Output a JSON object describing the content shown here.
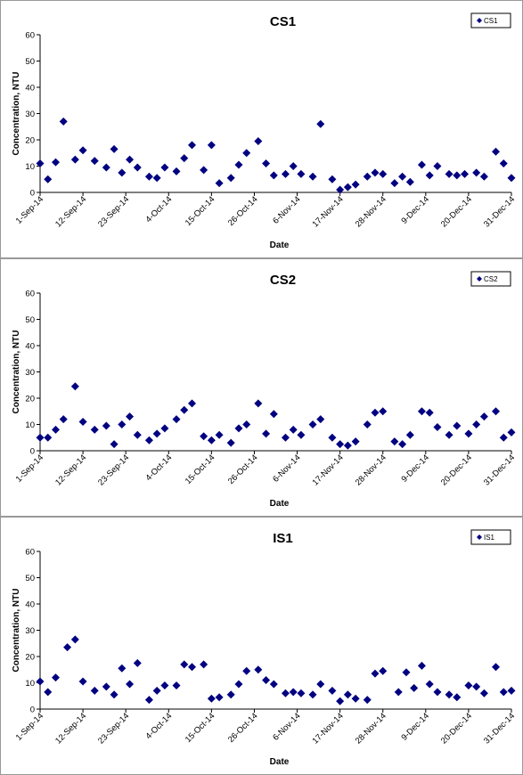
{
  "chart_data": [
    {
      "type": "scatter",
      "title": "CS1",
      "xlabel": "Date",
      "ylabel": "Concentration, NTU",
      "ylim": [
        0,
        60
      ],
      "yticks": [
        "0",
        "10",
        "20",
        "30",
        "40",
        "50",
        "60"
      ],
      "xlim": [
        "2014-09-01",
        "2014-12-31"
      ],
      "xticks": [
        "1-Sep-14",
        "12-Sep-14",
        "23-Sep-14",
        "4-Oct-14",
        "15-Oct-14",
        "26-Oct-14",
        "6-Nov-14",
        "17-Nov-14",
        "28-Nov-14",
        "9-Dec-14",
        "20-Dec-14",
        "31-Dec-14"
      ],
      "legend": "top-right",
      "series": [
        {
          "name": "CS1",
          "color": "#000080",
          "points": [
            [
              "2014-09-01",
              11
            ],
            [
              "2014-09-03",
              5
            ],
            [
              "2014-09-05",
              11.5
            ],
            [
              "2014-09-07",
              27
            ],
            [
              "2014-09-10",
              12.5
            ],
            [
              "2014-09-12",
              16
            ],
            [
              "2014-09-15",
              12
            ],
            [
              "2014-09-18",
              9.5
            ],
            [
              "2014-09-20",
              16.5
            ],
            [
              "2014-09-22",
              7.5
            ],
            [
              "2014-09-24",
              12.5
            ],
            [
              "2014-09-26",
              9.5
            ],
            [
              "2014-09-29",
              6
            ],
            [
              "2014-10-01",
              5.5
            ],
            [
              "2014-10-03",
              9.5
            ],
            [
              "2014-10-06",
              8
            ],
            [
              "2014-10-08",
              13
            ],
            [
              "2014-10-10",
              18
            ],
            [
              "2014-10-13",
              8.5
            ],
            [
              "2014-10-15",
              18
            ],
            [
              "2014-10-17",
              3.5
            ],
            [
              "2014-10-20",
              5.5
            ],
            [
              "2014-10-22",
              10.5
            ],
            [
              "2014-10-24",
              15
            ],
            [
              "2014-10-27",
              19.5
            ],
            [
              "2014-10-29",
              11
            ],
            [
              "2014-10-31",
              6.5
            ],
            [
              "2014-11-03",
              7
            ],
            [
              "2014-11-05",
              10
            ],
            [
              "2014-11-07",
              7
            ],
            [
              "2014-11-10",
              6
            ],
            [
              "2014-11-12",
              26
            ],
            [
              "2014-11-15",
              5
            ],
            [
              "2014-11-17",
              1
            ],
            [
              "2014-11-19",
              2
            ],
            [
              "2014-11-21",
              3
            ],
            [
              "2014-11-24",
              6
            ],
            [
              "2014-11-26",
              7.5
            ],
            [
              "2014-11-28",
              7
            ],
            [
              "2014-12-01",
              3.5
            ],
            [
              "2014-12-03",
              6
            ],
            [
              "2014-12-05",
              4
            ],
            [
              "2014-12-08",
              10.5
            ],
            [
              "2014-12-10",
              6.5
            ],
            [
              "2014-12-12",
              10
            ],
            [
              "2014-12-15",
              7
            ],
            [
              "2014-12-17",
              6.5
            ],
            [
              "2014-12-19",
              7
            ],
            [
              "2014-12-22",
              7.5
            ],
            [
              "2014-12-24",
              6
            ],
            [
              "2014-12-27",
              15.5
            ],
            [
              "2014-12-29",
              11
            ],
            [
              "2014-12-31",
              5.5
            ]
          ]
        }
      ]
    },
    {
      "type": "scatter",
      "title": "CS2",
      "xlabel": "Date",
      "ylabel": "Concentration, NTU",
      "ylim": [
        0,
        60
      ],
      "yticks": [
        "0",
        "10",
        "20",
        "30",
        "40",
        "50",
        "60"
      ],
      "xlim": [
        "2014-09-01",
        "2014-12-31"
      ],
      "xticks": [
        "1-Sep-14",
        "12-Sep-14",
        "23-Sep-14",
        "4-Oct-14",
        "15-Oct-14",
        "26-Oct-14",
        "6-Nov-14",
        "17-Nov-14",
        "28-Nov-14",
        "9-Dec-14",
        "20-Dec-14",
        "31-Dec-14"
      ],
      "legend": "top-right",
      "series": [
        {
          "name": "CS2",
          "color": "#000080",
          "points": [
            [
              "2014-09-01",
              5
            ],
            [
              "2014-09-03",
              5
            ],
            [
              "2014-09-05",
              8
            ],
            [
              "2014-09-07",
              12
            ],
            [
              "2014-09-10",
              24.5
            ],
            [
              "2014-09-12",
              11
            ],
            [
              "2014-09-15",
              8
            ],
            [
              "2014-09-18",
              9.5
            ],
            [
              "2014-09-20",
              2.5
            ],
            [
              "2014-09-22",
              10
            ],
            [
              "2014-09-24",
              13
            ],
            [
              "2014-09-26",
              6
            ],
            [
              "2014-09-29",
              4
            ],
            [
              "2014-10-01",
              6.5
            ],
            [
              "2014-10-03",
              8.5
            ],
            [
              "2014-10-06",
              12
            ],
            [
              "2014-10-08",
              15.5
            ],
            [
              "2014-10-10",
              18
            ],
            [
              "2014-10-13",
              5.5
            ],
            [
              "2014-10-15",
              4
            ],
            [
              "2014-10-17",
              6
            ],
            [
              "2014-10-20",
              3
            ],
            [
              "2014-10-22",
              8.5
            ],
            [
              "2014-10-24",
              10
            ],
            [
              "2014-10-27",
              18
            ],
            [
              "2014-10-29",
              6.5
            ],
            [
              "2014-10-31",
              14
            ],
            [
              "2014-11-03",
              5
            ],
            [
              "2014-11-05",
              8
            ],
            [
              "2014-11-07",
              6
            ],
            [
              "2014-11-10",
              10
            ],
            [
              "2014-11-12",
              12
            ],
            [
              "2014-11-15",
              5
            ],
            [
              "2014-11-17",
              2.5
            ],
            [
              "2014-11-19",
              2
            ],
            [
              "2014-11-21",
              3.5
            ],
            [
              "2014-11-24",
              10
            ],
            [
              "2014-11-26",
              14.5
            ],
            [
              "2014-11-28",
              15
            ],
            [
              "2014-12-01",
              3.5
            ],
            [
              "2014-12-03",
              2.5
            ],
            [
              "2014-12-05",
              6
            ],
            [
              "2014-12-08",
              15
            ],
            [
              "2014-12-10",
              14.5
            ],
            [
              "2014-12-12",
              9
            ],
            [
              "2014-12-15",
              6
            ],
            [
              "2014-12-17",
              9.5
            ],
            [
              "2014-12-20",
              6.5
            ],
            [
              "2014-12-22",
              10
            ],
            [
              "2014-12-24",
              13
            ],
            [
              "2014-12-27",
              15
            ],
            [
              "2014-12-29",
              5
            ],
            [
              "2014-12-31",
              7
            ]
          ]
        }
      ]
    },
    {
      "type": "scatter",
      "title": "IS1",
      "xlabel": "Date",
      "ylabel": "Concentration, NTU",
      "ylim": [
        0,
        60
      ],
      "yticks": [
        "0",
        "10",
        "20",
        "30",
        "40",
        "50",
        "60"
      ],
      "xlim": [
        "2014-09-01",
        "2014-12-31"
      ],
      "xticks": [
        "1-Sep-14",
        "12-Sep-14",
        "23-Sep-14",
        "4-Oct-14",
        "15-Oct-14",
        "26-Oct-14",
        "6-Nov-14",
        "17-Nov-14",
        "28-Nov-14",
        "9-Dec-14",
        "20-Dec-14",
        "31-Dec-14"
      ],
      "legend": "top-right",
      "series": [
        {
          "name": "IS1",
          "color": "#000080",
          "points": [
            [
              "2014-09-01",
              10.5
            ],
            [
              "2014-09-03",
              6.5
            ],
            [
              "2014-09-05",
              12
            ],
            [
              "2014-09-08",
              23.5
            ],
            [
              "2014-09-10",
              26.5
            ],
            [
              "2014-09-12",
              10.5
            ],
            [
              "2014-09-15",
              7
            ],
            [
              "2014-09-18",
              8.5
            ],
            [
              "2014-09-20",
              5.5
            ],
            [
              "2014-09-22",
              15.5
            ],
            [
              "2014-09-24",
              9.5
            ],
            [
              "2014-09-26",
              17.5
            ],
            [
              "2014-09-29",
              3.5
            ],
            [
              "2014-10-01",
              7
            ],
            [
              "2014-10-03",
              9
            ],
            [
              "2014-10-06",
              9
            ],
            [
              "2014-10-08",
              17
            ],
            [
              "2014-10-10",
              16
            ],
            [
              "2014-10-13",
              17
            ],
            [
              "2014-10-15",
              4
            ],
            [
              "2014-10-17",
              4.5
            ],
            [
              "2014-10-20",
              5.5
            ],
            [
              "2014-10-22",
              9.5
            ],
            [
              "2014-10-24",
              14.5
            ],
            [
              "2014-10-27",
              15
            ],
            [
              "2014-10-29",
              11
            ],
            [
              "2014-10-31",
              9.5
            ],
            [
              "2014-11-03",
              6
            ],
            [
              "2014-11-05",
              6.5
            ],
            [
              "2014-11-07",
              6
            ],
            [
              "2014-11-10",
              5.5
            ],
            [
              "2014-11-12",
              9.5
            ],
            [
              "2014-11-15",
              7
            ],
            [
              "2014-11-17",
              3
            ],
            [
              "2014-11-19",
              5.5
            ],
            [
              "2014-11-21",
              4
            ],
            [
              "2014-11-24",
              3.5
            ],
            [
              "2014-11-26",
              13.5
            ],
            [
              "2014-11-28",
              14.5
            ],
            [
              "2014-12-02",
              6.5
            ],
            [
              "2014-12-04",
              14
            ],
            [
              "2014-12-06",
              8
            ],
            [
              "2014-12-08",
              16.5
            ],
            [
              "2014-12-10",
              9.5
            ],
            [
              "2014-12-12",
              6.5
            ],
            [
              "2014-12-15",
              5.5
            ],
            [
              "2014-12-17",
              4.5
            ],
            [
              "2014-12-20",
              9
            ],
            [
              "2014-12-22",
              8.5
            ],
            [
              "2014-12-24",
              6
            ],
            [
              "2014-12-27",
              16
            ],
            [
              "2014-12-29",
              6.5
            ],
            [
              "2014-12-31",
              7
            ]
          ]
        }
      ]
    }
  ]
}
